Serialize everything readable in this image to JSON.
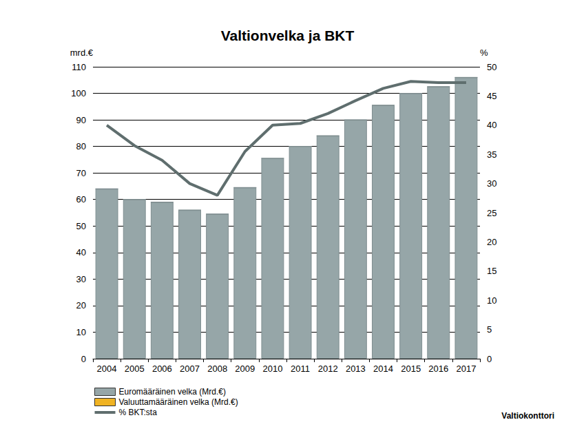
{
  "chart_data": {
    "type": "bar",
    "title": "Valtionvelka ja BKT",
    "y_label": "mrd.€",
    "y2_label": "%",
    "source": "Valtiokonttori",
    "categories": [
      "2004",
      "2005",
      "2006",
      "2007",
      "2008",
      "2009",
      "2010",
      "2011",
      "2012",
      "2013",
      "2014",
      "2015",
      "2016",
      "2017"
    ],
    "series": [
      {
        "name": "Euromääräinen velka (Mrd.€)",
        "type": "bar",
        "color": "#96a6a8",
        "values": [
          64,
          60,
          59,
          56,
          54.5,
          64.5,
          75.5,
          80,
          84,
          90,
          95.5,
          100,
          102.5,
          106
        ]
      },
      {
        "name": "Valuuttamääräinen velka (Mrd.€)",
        "type": "bar",
        "color": "#f0b323",
        "values": [
          0,
          0,
          0,
          0,
          0,
          0,
          0,
          0,
          0,
          0,
          0,
          0,
          0,
          0
        ]
      },
      {
        "name": "% BKT:sta",
        "type": "line",
        "color": "#5f6e6e",
        "axis": "y2",
        "values": [
          40,
          36.5,
          34,
          30,
          28,
          35.5,
          40,
          40.3,
          42,
          44.2,
          46.3,
          47.5,
          47.3,
          47.3
        ]
      }
    ],
    "ylim": [
      0,
      110
    ],
    "yticks": [
      0,
      10,
      20,
      30,
      40,
      50,
      60,
      70,
      80,
      90,
      100,
      110
    ],
    "y2lim": [
      0,
      50
    ],
    "y2ticks": [
      0,
      5,
      10,
      15,
      20,
      25,
      30,
      35,
      40,
      45,
      50
    ],
    "stacked": true,
    "grid": true,
    "legend": "bottom-left"
  }
}
